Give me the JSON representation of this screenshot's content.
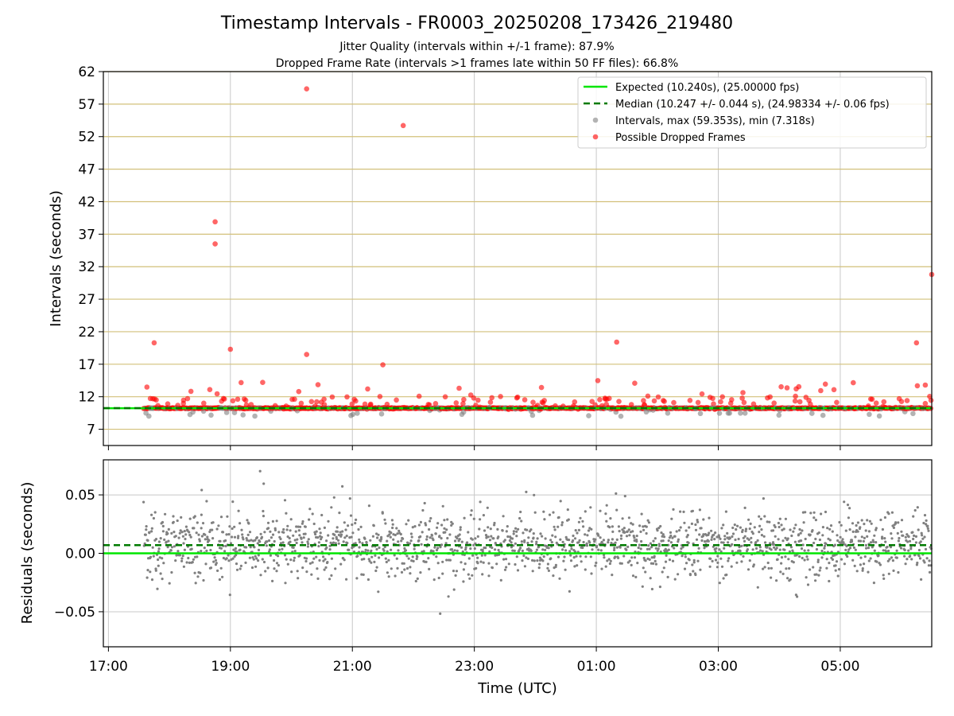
{
  "chart_data": {
    "title": "Timestamp Intervals - FR0003_20250208_173426_219480",
    "subtitle_lines": [
      "Jitter Quality (intervals within +/-1 frame): 87.9%",
      "Dropped Frame Rate (intervals >1 frames late within 50 FF files): 66.8%"
    ],
    "xlabel": "Time (UTC)",
    "x_axis": {
      "range_hours_utc": [
        "16:55",
        "06:30 (next day)"
      ],
      "tick_labels": [
        "17:00",
        "19:00",
        "21:00",
        "23:00",
        "01:00",
        "03:00",
        "05:00"
      ]
    },
    "top_panel": {
      "type": "scatter",
      "ylabel": "Intervals (seconds)",
      "ylim": [
        4.5,
        62
      ],
      "yticks": [
        7,
        12,
        17,
        22,
        27,
        32,
        37,
        42,
        47,
        52,
        57,
        62
      ],
      "horizontal_gridline_color": "#d2c07a",
      "expected_interval": 10.24,
      "median_interval": 10.247,
      "legend": [
        "Expected (10.240s), (25.00000 fps)",
        "Median (10.247 +/- 0.044 s), (24.98334 +/- 0.06 fps)",
        "Intervals, max (59.353s), min (7.318s)",
        "Possible Dropped Frames"
      ],
      "legend_placement": "top-right",
      "highlighted_dropped_points": [
        {
          "time": "18:45",
          "value": 38.9
        },
        {
          "time": "18:45",
          "value": 35.5
        },
        {
          "time": "20:15",
          "value": 59.35
        },
        {
          "time": "21:50",
          "value": 53.7
        },
        {
          "time": "17:45",
          "value": 20.3
        },
        {
          "time": "19:00",
          "value": 19.3
        },
        {
          "time": "20:15",
          "value": 18.5
        },
        {
          "time": "21:30",
          "value": 16.9
        },
        {
          "time": "01:20",
          "value": 20.4
        },
        {
          "time": "06:15",
          "value": 20.3
        },
        {
          "time": "06:30",
          "value": 30.8
        }
      ],
      "series_colors": {
        "expected": "#00e600",
        "median": "#007a00",
        "intervals": "#808080",
        "dropped": "#ff0000"
      }
    },
    "bottom_panel": {
      "type": "scatter",
      "ylabel": "Residuals (seconds)",
      "ylim": [
        -0.08,
        0.08
      ],
      "yticks": [
        -0.05,
        0.0,
        0.05
      ],
      "ytick_labels": [
        "−0.05",
        "0.00",
        "0.05"
      ],
      "expected_residual": 0.0,
      "median_residual": 0.007
    }
  }
}
